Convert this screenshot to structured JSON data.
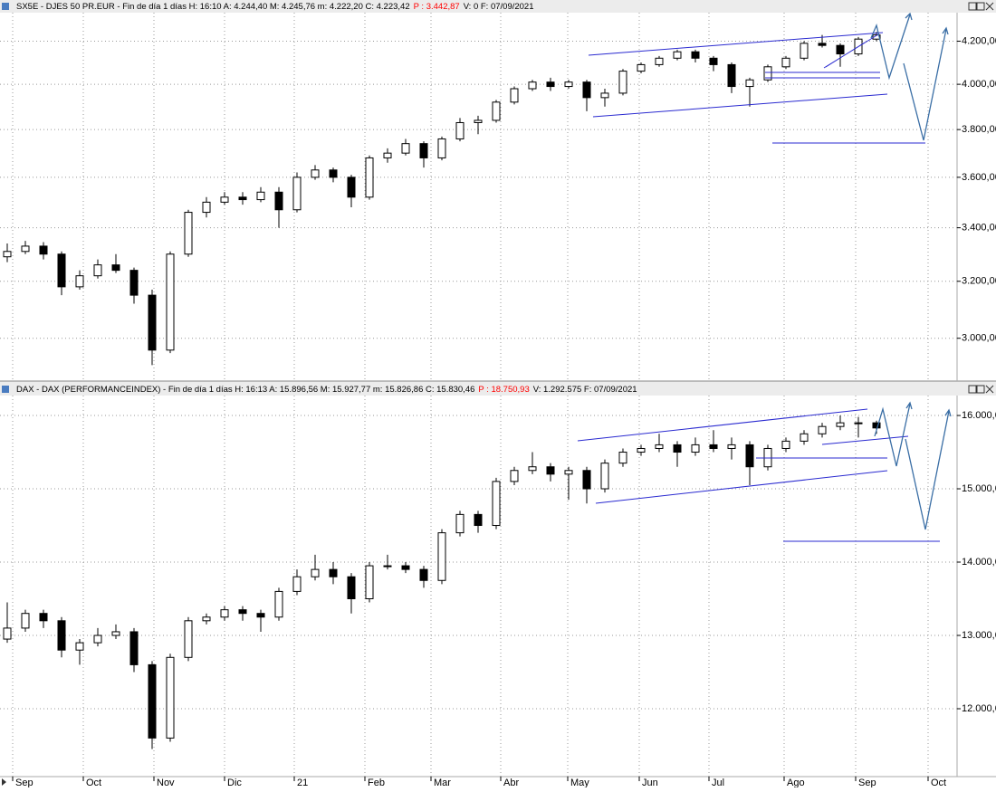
{
  "chart_data": [
    {
      "type": "candlestick",
      "title": "SX5E - DJES 50 PR.EUR - Fin de día 1 días H: 16:10 A: 4.244,40 M: 4.245,76 m: 4.222,20 C: 4.223,42",
      "highlight": "P : 3.442,87",
      "highlight_color": "#ff0000",
      "title_end": "V: 0 F: 07/09/2021",
      "log_scale": true,
      "grid": true,
      "up_color": "#ffffff",
      "down_color": "#000000",
      "ylim": [
        2858,
        4338
      ],
      "yticks": [
        {
          "value": 3000,
          "label": "3.000,00"
        },
        {
          "value": 3200,
          "label": "3.200,00"
        },
        {
          "value": 3400,
          "label": "3.400,00"
        },
        {
          "value": 3600,
          "label": "3.600,00"
        },
        {
          "value": 3800,
          "label": "3.800,00"
        },
        {
          "value": 4000,
          "label": "4.000,00"
        },
        {
          "value": 4200,
          "label": "4.200,00"
        }
      ],
      "xlim": [
        0,
        264.25
      ],
      "xticks": [
        3.5,
        23,
        42.5,
        62,
        81.25,
        100.75,
        119,
        138.25,
        156.75,
        176.5,
        195.75,
        216.5,
        236.25,
        256.25
      ],
      "x": [
        2,
        7,
        12,
        17,
        22,
        27,
        32,
        37,
        42,
        47,
        52,
        57,
        62,
        67,
        72,
        77,
        82,
        87,
        92,
        97,
        102,
        107,
        112,
        117,
        122,
        127,
        132,
        137,
        142,
        147,
        152,
        157,
        162,
        167,
        172,
        177,
        182,
        187,
        192,
        197,
        202,
        207,
        212,
        217,
        222,
        227,
        232,
        237,
        242
      ],
      "ohlc": [
        [
          3290,
          3340,
          3270,
          3310
        ],
        [
          3310,
          3350,
          3300,
          3330
        ],
        [
          3330,
          3345,
          3280,
          3300
        ],
        [
          3300,
          3310,
          3150,
          3180
        ],
        [
          3180,
          3240,
          3170,
          3220
        ],
        [
          3220,
          3280,
          3210,
          3260
        ],
        [
          3260,
          3300,
          3230,
          3240
        ],
        [
          3240,
          3250,
          3120,
          3150
        ],
        [
          3150,
          3170,
          2910,
          2960
        ],
        [
          2960,
          3310,
          2950,
          3300
        ],
        [
          3300,
          3470,
          3290,
          3460
        ],
        [
          3460,
          3520,
          3440,
          3500
        ],
        [
          3500,
          3540,
          3490,
          3520
        ],
        [
          3520,
          3540,
          3490,
          3510
        ],
        [
          3510,
          3560,
          3500,
          3540
        ],
        [
          3540,
          3560,
          3400,
          3470
        ],
        [
          3470,
          3620,
          3460,
          3600
        ],
        [
          3600,
          3650,
          3590,
          3630
        ],
        [
          3630,
          3640,
          3580,
          3600
        ],
        [
          3600,
          3610,
          3480,
          3520
        ],
        [
          3520,
          3690,
          3510,
          3680
        ],
        [
          3680,
          3720,
          3660,
          3700
        ],
        [
          3700,
          3760,
          3690,
          3740
        ],
        [
          3740,
          3750,
          3640,
          3680
        ],
        [
          3680,
          3770,
          3670,
          3760
        ],
        [
          3760,
          3850,
          3750,
          3830
        ],
        [
          3830,
          3860,
          3780,
          3840
        ],
        [
          3840,
          3930,
          3830,
          3920
        ],
        [
          3920,
          3990,
          3910,
          3980
        ],
        [
          3980,
          4020,
          3970,
          4010
        ],
        [
          4010,
          4030,
          3970,
          3990
        ],
        [
          3990,
          4020,
          3980,
          4010
        ],
        [
          4010,
          4020,
          3880,
          3940
        ],
        [
          3940,
          3980,
          3900,
          3960
        ],
        [
          3960,
          4070,
          3950,
          4060
        ],
        [
          4060,
          4100,
          4050,
          4090
        ],
        [
          4090,
          4130,
          4080,
          4120
        ],
        [
          4120,
          4160,
          4110,
          4150
        ],
        [
          4150,
          4160,
          4100,
          4120
        ],
        [
          4120,
          4130,
          4060,
          4090
        ],
        [
          4090,
          4100,
          3960,
          3990
        ],
        [
          3990,
          4030,
          3900,
          4020
        ],
        [
          4020,
          4090,
          4010,
          4080
        ],
        [
          4080,
          4130,
          4070,
          4120
        ],
        [
          4120,
          4200,
          4110,
          4190
        ],
        [
          4190,
          4230,
          4170,
          4180
        ],
        [
          4180,
          4190,
          4080,
          4140
        ],
        [
          4140,
          4220,
          4130,
          4210
        ],
        [
          4210,
          4245,
          4200,
          4230
        ]
      ]
    },
    {
      "type": "candlestick",
      "title": "DAX - DAX (PERFORMANCEINDEX) - Fin de día 1 días H: 16:13 A: 15.896,56 M: 15.927,77 m: 15.826,86 C: 15.830,46",
      "highlight": "P : 18.750,93",
      "highlight_color": "#ff0000",
      "title_end": "V: 1.292.575 F: 07/09/2021",
      "log_scale": false,
      "grid": true,
      "up_color": "#ffffff",
      "down_color": "#000000",
      "ylim": [
        11074,
        16272
      ],
      "yticks": [
        {
          "value": 12000,
          "label": "12.000,0"
        },
        {
          "value": 13000,
          "label": "13.000,0"
        },
        {
          "value": 14000,
          "label": "14.000,0"
        },
        {
          "value": 15000,
          "label": "15.000,0"
        },
        {
          "value": 16000,
          "label": "16.000,0"
        }
      ],
      "xlim": [
        0,
        264.25
      ],
      "xticks": [
        {
          "value": 3.5,
          "label": "Sep"
        },
        {
          "value": 23,
          "label": "Oct"
        },
        {
          "value": 42.5,
          "label": "Nov"
        },
        {
          "value": 62,
          "label": "Dic"
        },
        {
          "value": 81.25,
          "label": "21"
        },
        {
          "value": 100.75,
          "label": "Feb"
        },
        {
          "value": 119,
          "label": "Mar"
        },
        {
          "value": 138.25,
          "label": "Abr"
        },
        {
          "value": 156.75,
          "label": "May"
        },
        {
          "value": 176.5,
          "label": "Jun"
        },
        {
          "value": 195.75,
          "label": "Jul"
        },
        {
          "value": 216.5,
          "label": "Ago"
        },
        {
          "value": 236.25,
          "label": "Sep"
        },
        {
          "value": 256.25,
          "label": "Oct"
        }
      ],
      "x": [
        2,
        7,
        12,
        17,
        22,
        27,
        32,
        37,
        42,
        47,
        52,
        57,
        62,
        67,
        72,
        77,
        82,
        87,
        92,
        97,
        102,
        107,
        112,
        117,
        122,
        127,
        132,
        137,
        142,
        147,
        152,
        157,
        162,
        167,
        172,
        177,
        182,
        187,
        192,
        197,
        202,
        207,
        212,
        217,
        222,
        227,
        232,
        237,
        242
      ],
      "ohlc": [
        [
          12950,
          13450,
          12900,
          13100
        ],
        [
          13100,
          13350,
          13050,
          13300
        ],
        [
          13300,
          13350,
          13100,
          13200
        ],
        [
          13200,
          13250,
          12700,
          12800
        ],
        [
          12800,
          12950,
          12600,
          12900
        ],
        [
          12900,
          13100,
          12850,
          13000
        ],
        [
          13000,
          13150,
          12950,
          13050
        ],
        [
          13050,
          13100,
          12500,
          12600
        ],
        [
          12600,
          12650,
          11450,
          11600
        ],
        [
          11600,
          12750,
          11550,
          12700
        ],
        [
          12700,
          13250,
          12650,
          13200
        ],
        [
          13200,
          13300,
          13150,
          13250
        ],
        [
          13250,
          13400,
          13200,
          13350
        ],
        [
          13350,
          13400,
          13200,
          13300
        ],
        [
          13300,
          13350,
          13050,
          13250
        ],
        [
          13250,
          13650,
          13200,
          13600
        ],
        [
          13600,
          13900,
          13550,
          13800
        ],
        [
          13800,
          14100,
          13750,
          13900
        ],
        [
          13900,
          14000,
          13700,
          13800
        ],
        [
          13800,
          13850,
          13300,
          13500
        ],
        [
          13500,
          14000,
          13450,
          13950
        ],
        [
          13950,
          14100,
          13900,
          13950
        ],
        [
          13950,
          14000,
          13850,
          13900
        ],
        [
          13900,
          13950,
          13650,
          13750
        ],
        [
          13750,
          14450,
          13700,
          14400
        ],
        [
          14400,
          14700,
          14350,
          14650
        ],
        [
          14650,
          14700,
          14400,
          14500
        ],
        [
          14500,
          15150,
          14450,
          15100
        ],
        [
          15100,
          15300,
          15050,
          15250
        ],
        [
          15250,
          15500,
          15200,
          15300
        ],
        [
          15300,
          15350,
          15100,
          15200
        ],
        [
          15200,
          15300,
          14850,
          15250
        ],
        [
          15250,
          15300,
          14800,
          15000
        ],
        [
          15000,
          15400,
          14950,
          15350
        ],
        [
          15350,
          15550,
          15300,
          15500
        ],
        [
          15500,
          15600,
          15450,
          15550
        ],
        [
          15550,
          15750,
          15500,
          15600
        ],
        [
          15600,
          15650,
          15300,
          15500
        ],
        [
          15500,
          15700,
          15450,
          15600
        ],
        [
          15600,
          15800,
          15500,
          15550
        ],
        [
          15550,
          15700,
          15400,
          15600
        ],
        [
          15600,
          15650,
          15050,
          15300
        ],
        [
          15300,
          15600,
          15250,
          15550
        ],
        [
          15550,
          15700,
          15500,
          15650
        ],
        [
          15650,
          15800,
          15600,
          15750
        ],
        [
          15750,
          15900,
          15700,
          15850
        ],
        [
          15850,
          16000,
          15800,
          15900
        ],
        [
          15900,
          15980,
          15700,
          15900
        ],
        [
          15900,
          15930,
          15750,
          15830
        ]
      ]
    }
  ]
}
